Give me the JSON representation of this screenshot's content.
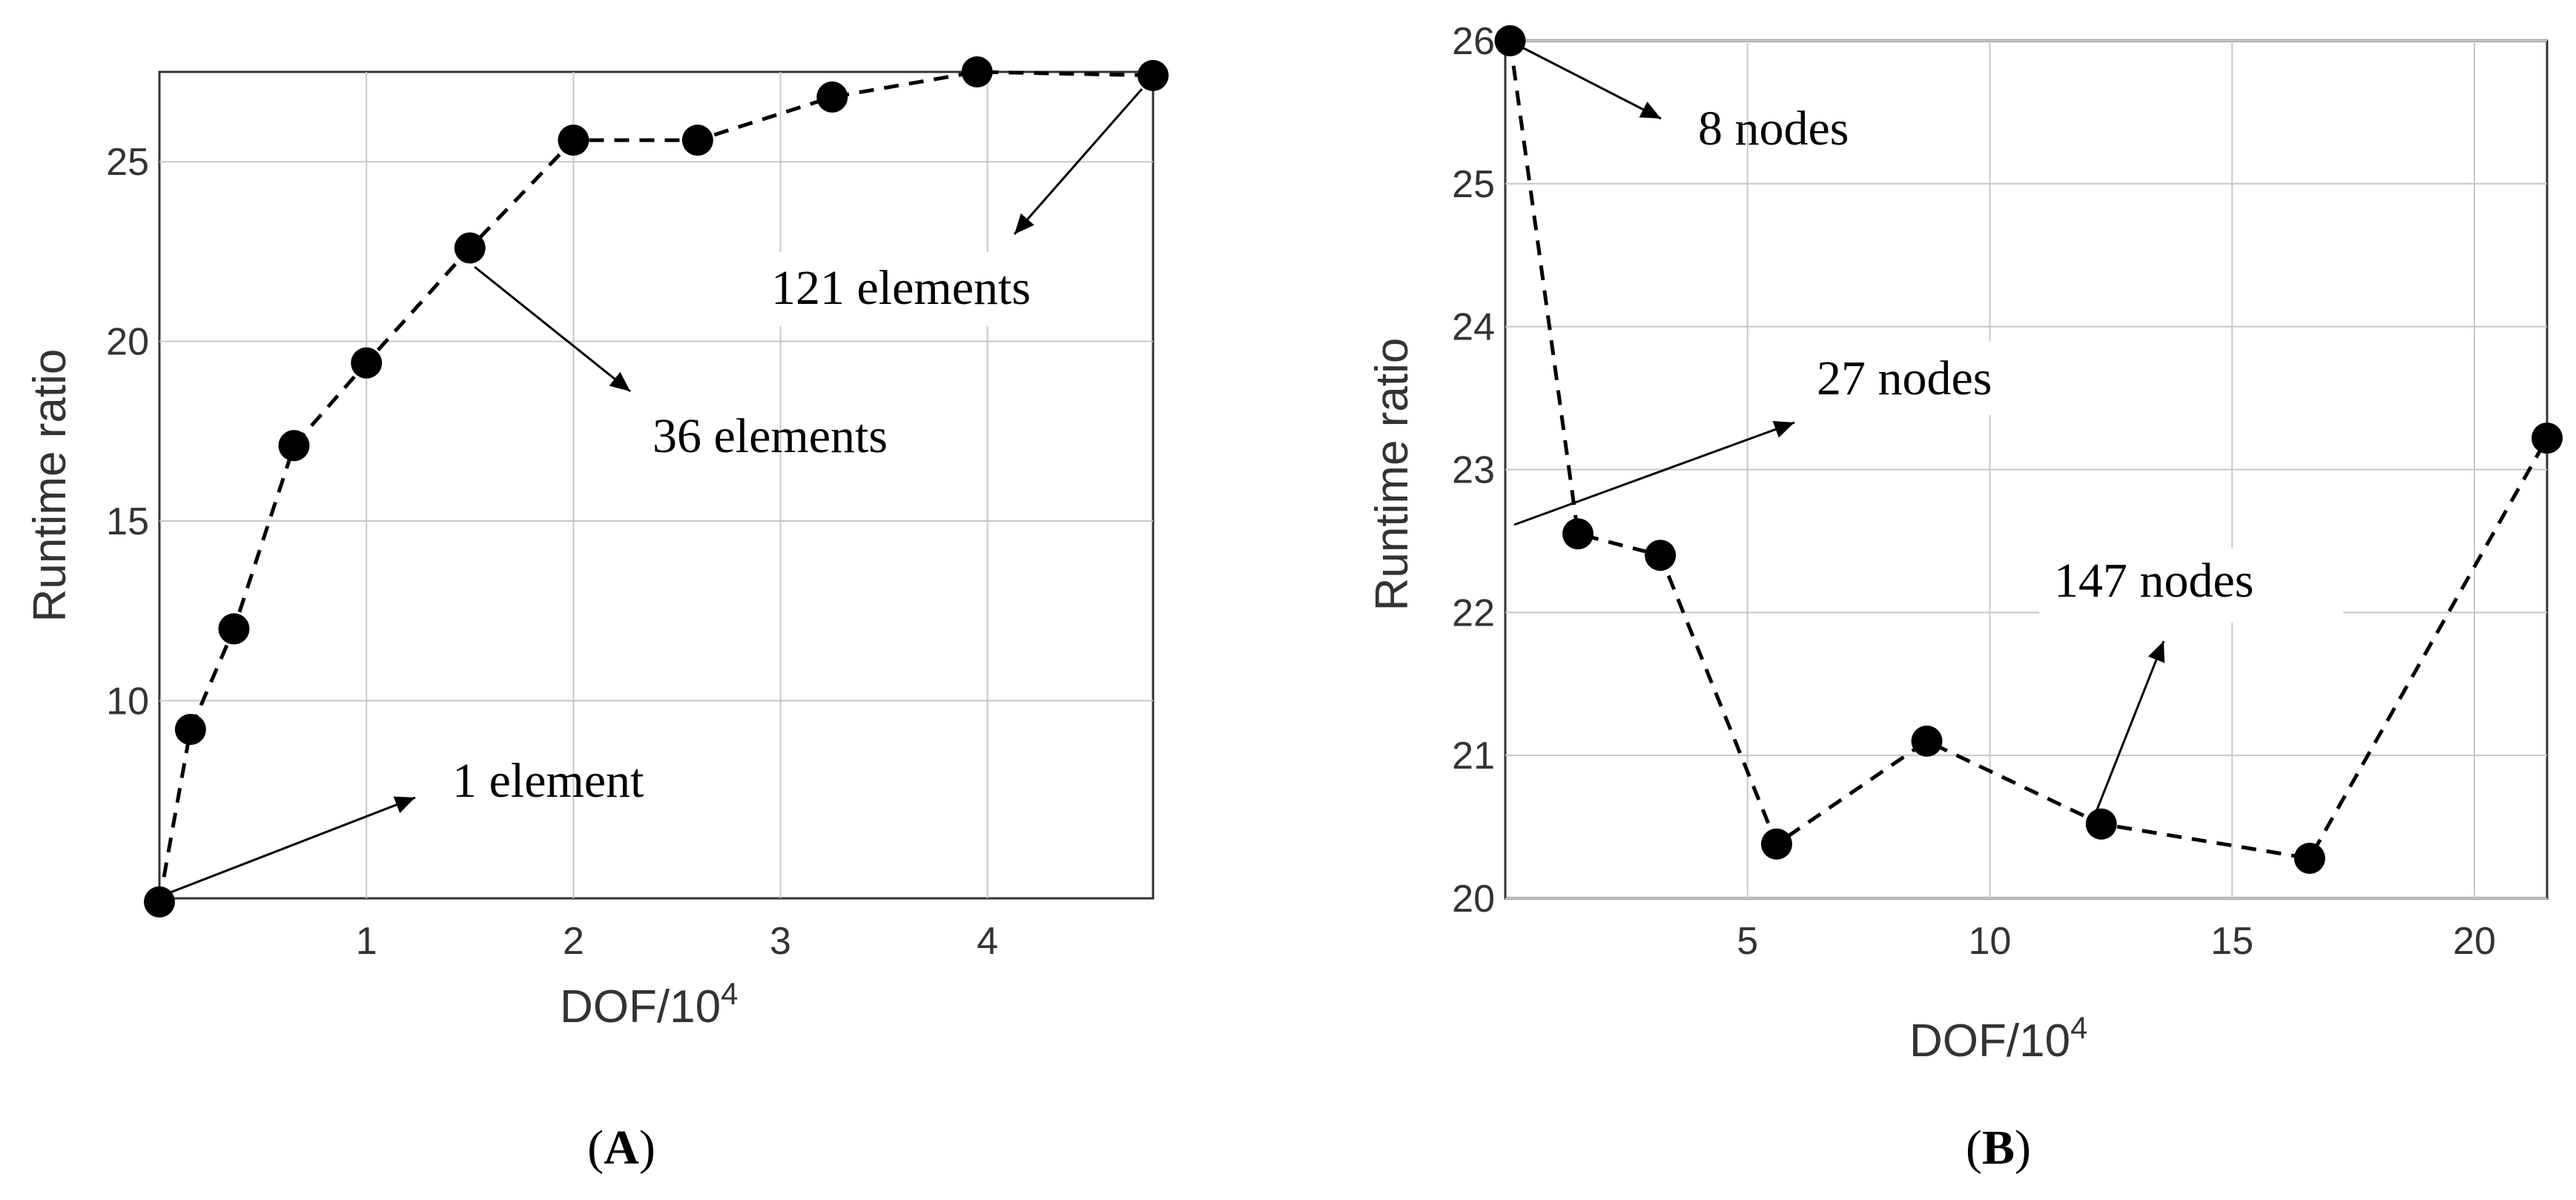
{
  "chart_data": [
    {
      "type": "line",
      "panel_label": "A",
      "xlabel": "DOF/10",
      "xlabel_sup": "4",
      "ylabel": "Runtime ratio",
      "xlim": [
        0,
        4.8
      ],
      "ylim": [
        4.5,
        27.5
      ],
      "xticks": [
        1,
        2,
        3,
        4
      ],
      "yticks": [
        10,
        15,
        20,
        25
      ],
      "grid": true,
      "line_style": "dashed",
      "marker": "filled-circle",
      "x": [
        0,
        0.15,
        0.36,
        0.65,
        1.0,
        1.5,
        2.0,
        2.6,
        3.25,
        3.95,
        4.8
      ],
      "y": [
        4.4,
        9.2,
        12.0,
        17.1,
        19.4,
        22.6,
        25.6,
        25.6,
        26.8,
        27.5,
        27.4
      ],
      "annotations": [
        {
          "text": "1 element",
          "point_index": 0
        },
        {
          "text": "36 elements",
          "point_index": 5
        },
        {
          "text": "121 elements",
          "point_index": 10
        }
      ]
    },
    {
      "type": "line",
      "panel_label": "B",
      "xlabel": "DOF/10",
      "xlabel_sup": "4",
      "ylabel": "Runtime ratio",
      "xlim": [
        0,
        21.5
      ],
      "ylim": [
        20,
        26
      ],
      "xticks": [
        5,
        10,
        15,
        20
      ],
      "yticks": [
        20,
        21,
        22,
        23,
        24,
        25,
        26
      ],
      "grid": true,
      "line_style": "dashed",
      "marker": "filled-circle",
      "x": [
        0.1,
        1.5,
        3.2,
        5.6,
        8.7,
        12.3,
        16.6,
        21.5
      ],
      "y": [
        26.0,
        22.55,
        22.4,
        20.38,
        21.1,
        20.52,
        20.28,
        23.22
      ],
      "annotations": [
        {
          "text": "8 nodes",
          "point_index": 0
        },
        {
          "text": "27 nodes",
          "point_index": 1
        },
        {
          "text": "147 nodes",
          "point_index": 5
        }
      ]
    }
  ]
}
